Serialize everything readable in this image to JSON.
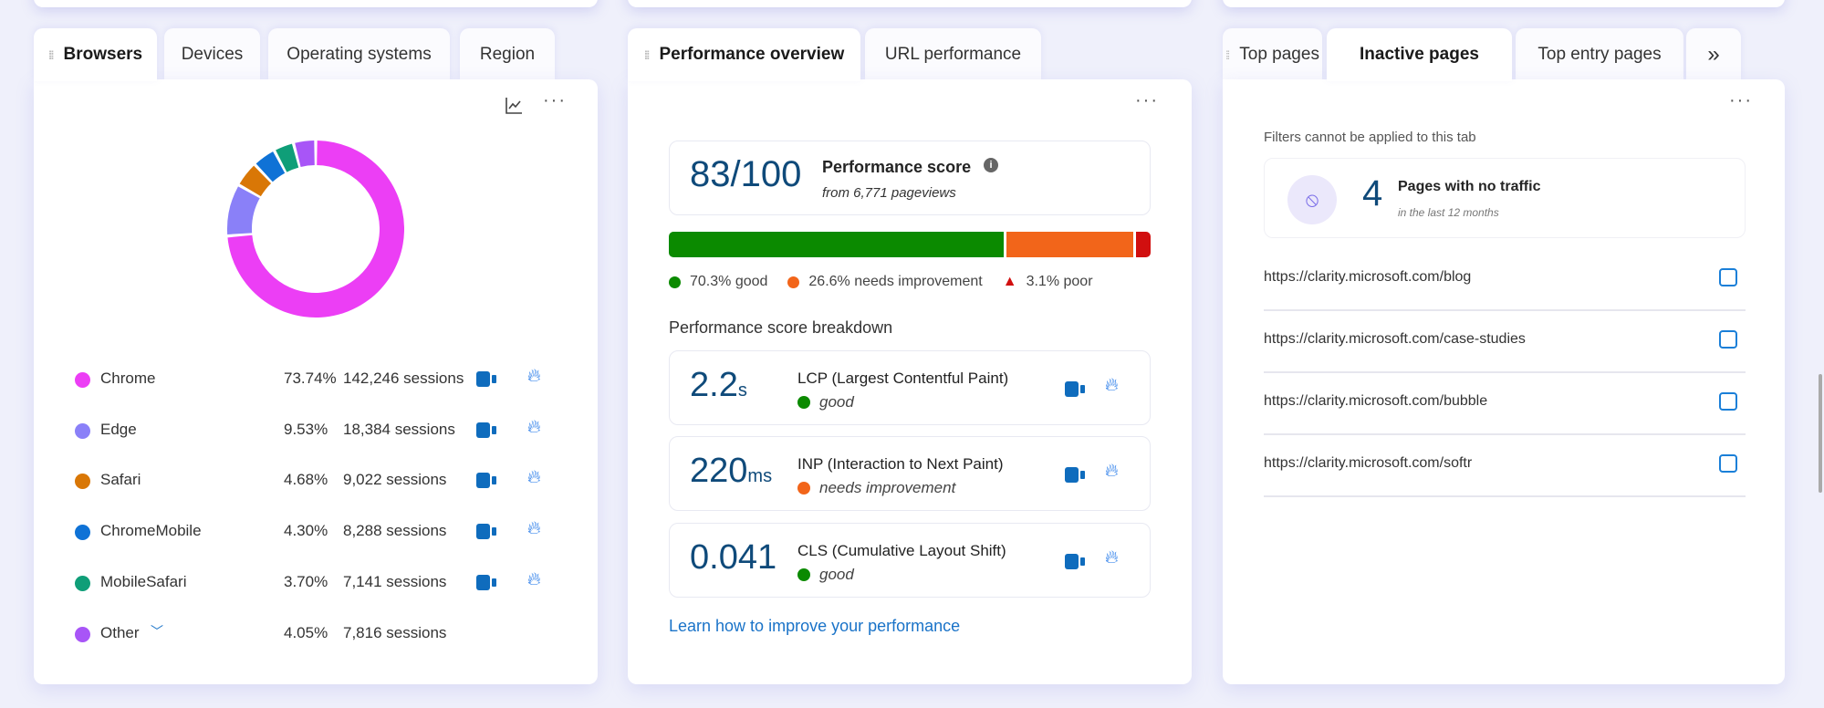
{
  "browsers_panel": {
    "tabs": [
      "Browsers",
      "Devices",
      "Operating systems",
      "Region"
    ],
    "active_tab": "Browsers",
    "chart_data": {
      "type": "pie",
      "variant": "donut",
      "categories": [
        "Chrome",
        "Edge",
        "Safari",
        "ChromeMobile",
        "MobileSafari",
        "Other"
      ],
      "values": [
        73.74,
        9.53,
        4.68,
        4.3,
        3.7,
        4.05
      ],
      "colors": [
        "#ec3ef5",
        "#8a80f8",
        "#d97706",
        "#0f72d6",
        "#0f9e78",
        "#a855f7"
      ]
    },
    "rows": [
      {
        "name": "Chrome",
        "pct": "73.74%",
        "sessions": "142,246 sessions",
        "color": "#ec3ef5"
      },
      {
        "name": "Edge",
        "pct": "9.53%",
        "sessions": "18,384 sessions",
        "color": "#8a80f8"
      },
      {
        "name": "Safari",
        "pct": "4.68%",
        "sessions": "9,022 sessions",
        "color": "#d97706"
      },
      {
        "name": "ChromeMobile",
        "pct": "4.30%",
        "sessions": "8,288 sessions",
        "color": "#0f72d6"
      },
      {
        "name": "MobileSafari",
        "pct": "3.70%",
        "sessions": "7,141 sessions",
        "color": "#0f9e78"
      },
      {
        "name": "Other",
        "pct": "4.05%",
        "sessions": "7,816 sessions",
        "color": "#a855f7"
      }
    ]
  },
  "performance_panel": {
    "tabs": [
      "Performance overview",
      "URL performance"
    ],
    "active_tab": "Performance overview",
    "score": "83/100",
    "score_label": "Performance score",
    "score_sub": "from 6,771 pageviews",
    "distribution": [
      {
        "label": "70.3% good",
        "value": 70.3,
        "color": "#0b8a00"
      },
      {
        "label": "26.6% needs improvement",
        "value": 26.6,
        "color": "#f2651a"
      },
      {
        "label": "3.1% poor",
        "value": 3.1,
        "color": "#d10f0f"
      }
    ],
    "breakdown_title": "Performance score breakdown",
    "metrics": [
      {
        "value": "2.2",
        "unit": "s",
        "label": "LCP (Largest Contentful Paint)",
        "status": "good",
        "color": "#0b8a00"
      },
      {
        "value": "220",
        "unit": "ms",
        "label": "INP (Interaction to Next Paint)",
        "status": "needs improvement",
        "color": "#f2651a"
      },
      {
        "value": "0.041",
        "unit": "",
        "label": "CLS (Cumulative Layout Shift)",
        "status": "good",
        "color": "#0b8a00"
      }
    ],
    "link": "Learn how to improve your performance"
  },
  "pages_panel": {
    "tabs": [
      "Top pages",
      "Inactive pages",
      "Top entry pages"
    ],
    "active_tab": "Inactive pages",
    "more_tabs": "»",
    "notice": "Filters cannot be applied to this tab",
    "count": "4",
    "count_label": "Pages with no traffic",
    "count_sub": "in the last 12 months",
    "urls": [
      "https://clarity.microsoft.com/blog",
      "https://clarity.microsoft.com/case-studies",
      "https://clarity.microsoft.com/bubble",
      "https://clarity.microsoft.com/softr"
    ]
  },
  "more_menu": "···"
}
